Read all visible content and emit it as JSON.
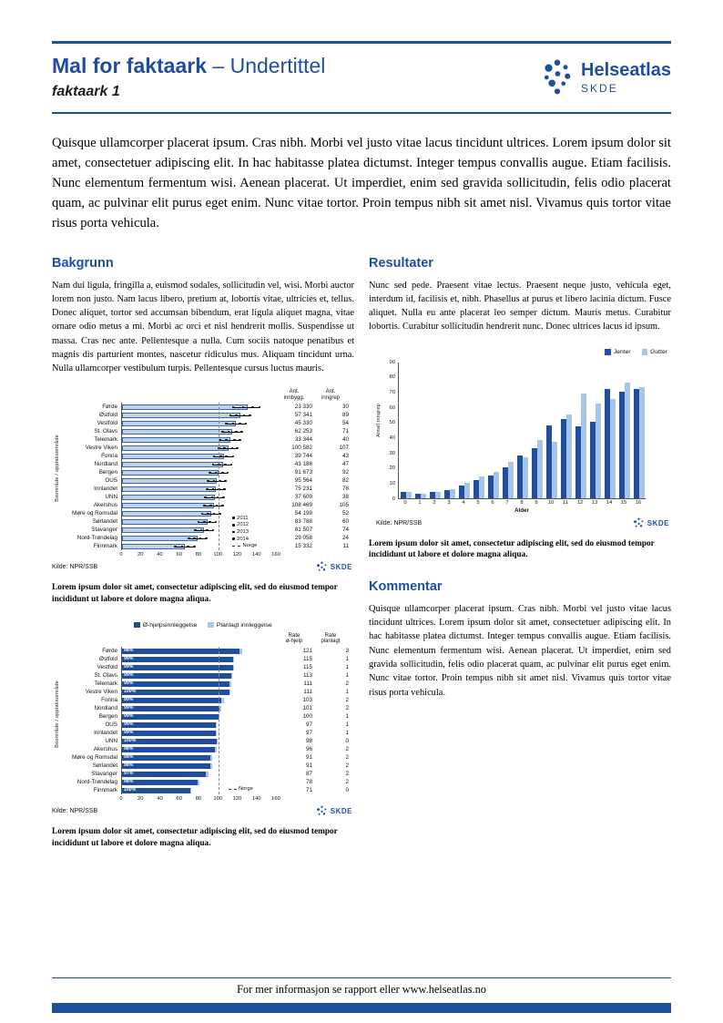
{
  "meta": {
    "brand_color": "#1f4e9e",
    "bar_dark": "#1f4e9e",
    "bar_light": "#a6c6e6",
    "bar_fill_light": "#bdd3ea",
    "skde_logo_text": "SKDE"
  },
  "header": {
    "title_main": "Mal for faktaark",
    "title_sub": "– Undertittel",
    "doc_label": "faktaark 1",
    "logo_title": "Helseatlas",
    "logo_org": "SKDE"
  },
  "intro": "Quisque ullamcorper placerat ipsum. Cras nibh. Morbi vel justo vitae lacus tincidunt ultrices. Lorem ipsum dolor sit amet, consectetuer adipiscing elit. In hac habitasse platea dictumst. Integer tempus convallis augue. Etiam facilisis. Nunc elementum fermentum wisi. Aenean placerat. Ut imperdiet, enim sed gravida sollicitudin, felis odio placerat quam, ac pulvinar elit purus eget enim. Nunc vitae tortor. Proin tempus nibh sit amet nisl. Vivamus quis tortor vitae risus porta vehicula.",
  "sections": {
    "bakgrunn": {
      "heading": "Bakgrunn",
      "body": "Nam dui ligula, fringilla a, euismod sodales, sollicitudin vel, wisi. Morbi auctor lorem non justo. Nam lacus libero, pretium at, lobortis vitae, ultricies et, tellus. Donec aliquet, tortor sed accumsan bibendum, erat ligula aliquet magna, vitae ornare odio metus a mi. Morbi ac orci et nisl hendrerit mollis. Suspendisse ut massa. Cras nec ante. Pellentesque a nulla. Cum sociis natoque penatibus et magnis dis parturient montes, nascetur ridiculus mus. Aliquam tincidunt urna. Nulla ullamcorper vestibulum turpis. Pellentesque cursus luctus mauris."
    },
    "resultater": {
      "heading": "Resultater",
      "body": "Nunc sed pede. Praesent vitae lectus. Praesent neque justo, vehicula eget, interdum id, facilisis et, nibh. Phasellus at purus et libero lacinia dictum. Fusce aliquet. Nulla eu ante placerat leo semper dictum. Mauris metus. Curabitur lobortis. Curabitur sollicitudin hendrerit nunc. Donec ultrices lacus id ipsum."
    },
    "kommentar": {
      "heading": "Kommentar",
      "body": "Quisque ullamcorper placerat ipsum. Cras nibh. Morbi vel justo vitae lacus tincidunt ultrices. Lorem ipsum dolor sit amet, consectetuer adipiscing elit. In hac habitasse platea dictumst. Integer tempus convallis augue. Etiam facilisis. Nunc elementum fermentum wisi. Aenean placerat. Ut imperdiet, enim sed gravida sollicitudin, felis odio placerat quam, ac pulvinar elit purus eget enim. Nunc vitae tortor. Proin tempus nibh sit amet nisl. Vivamus quis tortor vitae risus porta vehicula."
    }
  },
  "captions": {
    "fig1": "Lorem ipsum dolor sit amet, consectetur adipiscing elit, sed do eiusmod tempor incididunt ut labore et dolore magna aliqua.",
    "fig2": "Lorem ipsum dolor sit amet, consectetur adipiscing elit, sed do eiusmod tempor incididunt ut labore et dolore magna aliqua.",
    "fig3": "Lorem ipsum dolor sit amet, consectetur adipiscing elit, sed do eiusmod tempor incididunt ut labore et dolore magna aliqua."
  },
  "footer": {
    "text": "For mer informasjon se rapport eller www.helseatlas.no"
  },
  "chart_data": [
    {
      "type": "bar",
      "orientation": "horizontal",
      "ylabel": "Boområde / opptaksområde",
      "xlim": [
        0,
        160
      ],
      "xticks": [
        0,
        20,
        40,
        60,
        80,
        100,
        120,
        140,
        160
      ],
      "norge_line": 100,
      "col_headers": [
        "Ant.\ninnbygg.",
        "Ant.\ninngrep"
      ],
      "legend_years": [
        "2011",
        "2012",
        "2013",
        "2014"
      ],
      "legend_norge": "Norge",
      "source": "Kilde: NPR/SSB",
      "rows": [
        {
          "label": "Førde",
          "value": 130,
          "years": [
            115,
            125,
            135,
            142
          ],
          "innbygg": "23 330",
          "inngrep": "30"
        },
        {
          "label": "Østfold",
          "value": 122,
          "years": [
            112,
            118,
            126,
            132
          ],
          "innbygg": "57 341",
          "inngrep": "89"
        },
        {
          "label": "Vestfold",
          "value": 118,
          "years": [
            108,
            115,
            122,
            128
          ],
          "innbygg": "45 330",
          "inngrep": "54"
        },
        {
          "label": "St. Olavs",
          "value": 114,
          "years": [
            104,
            110,
            118,
            124
          ],
          "innbygg": "62 253",
          "inngrep": "71"
        },
        {
          "label": "Telemark",
          "value": 112,
          "years": [
            101,
            108,
            116,
            122
          ],
          "innbygg": "33 344",
          "inngrep": "40"
        },
        {
          "label": "Vestre Viken",
          "value": 110,
          "years": [
            100,
            106,
            114,
            119
          ],
          "innbygg": "100 582",
          "inngrep": "107"
        },
        {
          "label": "Fonna",
          "value": 105,
          "years": [
            95,
            102,
            108,
            115
          ],
          "innbygg": "39 744",
          "inngrep": "43"
        },
        {
          "label": "Nordland",
          "value": 104,
          "years": [
            94,
            100,
            107,
            113
          ],
          "innbygg": "43 186",
          "inngrep": "47"
        },
        {
          "label": "Bergen",
          "value": 100,
          "years": [
            91,
            97,
            104,
            109
          ],
          "innbygg": "91 673",
          "inngrep": "92"
        },
        {
          "label": "OUS",
          "value": 98,
          "years": [
            89,
            95,
            101,
            107
          ],
          "innbygg": "95 564",
          "inngrep": "82"
        },
        {
          "label": "Innlandet",
          "value": 97,
          "years": [
            88,
            94,
            100,
            106
          ],
          "innbygg": "75 231",
          "inngrep": "78"
        },
        {
          "label": "UNN",
          "value": 96,
          "years": [
            86,
            93,
            99,
            105
          ],
          "innbygg": "37 609",
          "inngrep": "38"
        },
        {
          "label": "Akershus",
          "value": 95,
          "years": [
            85,
            92,
            98,
            104
          ],
          "innbygg": "108 469",
          "inngrep": "105"
        },
        {
          "label": "Møre og Romsdal",
          "value": 92,
          "years": [
            83,
            89,
            95,
            101
          ],
          "innbygg": "54 199",
          "inngrep": "52"
        },
        {
          "label": "Sørlandet",
          "value": 88,
          "years": [
            79,
            85,
            91,
            97
          ],
          "innbygg": "83 788",
          "inngrep": "60"
        },
        {
          "label": "Stavanger",
          "value": 85,
          "years": [
            76,
            82,
            88,
            94
          ],
          "innbygg": "81 507",
          "inngrep": "74"
        },
        {
          "label": "Nord-Trøndelag",
          "value": 78,
          "years": [
            69,
            75,
            81,
            87
          ],
          "innbygg": "29 058",
          "inngrep": "24"
        },
        {
          "label": "Finnmark",
          "value": 65,
          "years": [
            55,
            62,
            68,
            75
          ],
          "innbygg": "15 332",
          "inngrep": "11"
        }
      ]
    },
    {
      "type": "bar",
      "orientation": "horizontal",
      "stacked": true,
      "ylabel": "Boområde / opptaksområde",
      "xlim": [
        0,
        160
      ],
      "xticks": [
        0,
        20,
        40,
        60,
        80,
        100,
        120,
        140,
        160
      ],
      "norge_line": 100,
      "norge_label": "Norge",
      "col_headers": [
        "Rate\nø-hjelp",
        "Rate\nplanlagt"
      ],
      "series": [
        {
          "name": "Ø-hjelpsinnleggelse"
        },
        {
          "name": "Planlagt innleggelse"
        }
      ],
      "source": "Kilde: NPR/SSB",
      "rows": [
        {
          "label": "Førde",
          "pct": "98%",
          "rate_ohjelp": 121,
          "rate_planlagt": 3
        },
        {
          "label": "Østfold",
          "pct": "99%",
          "rate_ohjelp": 115,
          "rate_planlagt": 1
        },
        {
          "label": "Vestfold",
          "pct": "99%",
          "rate_ohjelp": 115,
          "rate_planlagt": 1
        },
        {
          "label": "St. Olavs",
          "pct": "99%",
          "rate_ohjelp": 113,
          "rate_planlagt": 1
        },
        {
          "label": "Telemark",
          "pct": "99%",
          "rate_ohjelp": 111,
          "rate_planlagt": 2
        },
        {
          "label": "Vestre Viken",
          "pct": "100%",
          "rate_ohjelp": 111,
          "rate_planlagt": 1
        },
        {
          "label": "Fonna",
          "pct": "99%",
          "rate_ohjelp": 103,
          "rate_planlagt": 2
        },
        {
          "label": "Nordland",
          "pct": "99%",
          "rate_ohjelp": 101,
          "rate_planlagt": 2
        },
        {
          "label": "Bergen",
          "pct": "99%",
          "rate_ohjelp": 100,
          "rate_planlagt": 1
        },
        {
          "label": "OUS",
          "pct": "99%",
          "rate_ohjelp": 97,
          "rate_planlagt": 1
        },
        {
          "label": "Innlandet",
          "pct": "99%",
          "rate_ohjelp": 97,
          "rate_planlagt": 1
        },
        {
          "label": "UNN",
          "pct": "100%",
          "rate_ohjelp": 98,
          "rate_planlagt": 0
        },
        {
          "label": "Akershus",
          "pct": "98%",
          "rate_ohjelp": 96,
          "rate_planlagt": 2
        },
        {
          "label": "Møre og Romsdal",
          "pct": "98%",
          "rate_ohjelp": 91,
          "rate_planlagt": 2
        },
        {
          "label": "Sørlandet",
          "pct": "98%",
          "rate_ohjelp": 91,
          "rate_planlagt": 2
        },
        {
          "label": "Stavanger",
          "pct": "97%",
          "rate_ohjelp": 87,
          "rate_planlagt": 2
        },
        {
          "label": "Nord-Trøndelag",
          "pct": "98%",
          "rate_ohjelp": 78,
          "rate_planlagt": 2
        },
        {
          "label": "Finnmark",
          "pct": "100%",
          "rate_ohjelp": 71,
          "rate_planlagt": 0
        }
      ]
    },
    {
      "type": "bar",
      "orientation": "vertical",
      "grouped": true,
      "xlabel": "Alder",
      "ylabel": "Antall inngrep",
      "ylim": [
        0,
        90
      ],
      "yticks": [
        0,
        10,
        20,
        30,
        40,
        50,
        60,
        70,
        80,
        90
      ],
      "x": [
        "0",
        "1",
        "2",
        "3",
        "4",
        "5",
        "6",
        "7",
        "8",
        "9",
        "10",
        "11",
        "12",
        "13",
        "14",
        "15",
        "16"
      ],
      "series": [
        {
          "name": "Jenter",
          "values": [
            4,
            3,
            4,
            5,
            8,
            12,
            15,
            20,
            28,
            33,
            48,
            52,
            47,
            50,
            72,
            70,
            72
          ]
        },
        {
          "name": "Gutter",
          "values": [
            4,
            3,
            4,
            6,
            10,
            14,
            17,
            24,
            27,
            38,
            37,
            55,
            69,
            62,
            65,
            76,
            73
          ]
        }
      ],
      "source": "Kilde: NPR/SSB"
    }
  ]
}
